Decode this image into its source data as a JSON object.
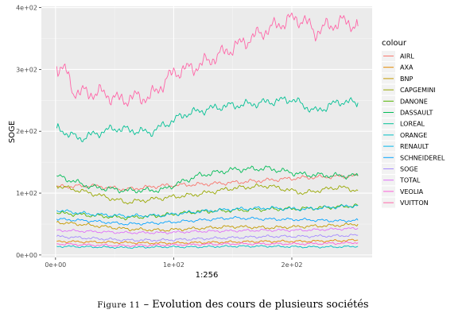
{
  "chart_data": {
    "type": "line",
    "xlabel": "1:256",
    "ylabel": "SOGE",
    "xlim": [
      -12,
      268
    ],
    "ylim": [
      -4,
      402
    ],
    "x_ticks": [
      0,
      100,
      200
    ],
    "x_tick_labels": [
      "0e+00",
      "1e+02",
      "2e+02"
    ],
    "y_ticks": [
      0,
      100,
      200,
      300,
      400
    ],
    "y_tick_labels": [
      "0e+00",
      "1e+02",
      "2e+02",
      "3e+02",
      "4e+02"
    ],
    "grid": true,
    "legend_title": "colour",
    "legend_position": "right",
    "series": [
      {
        "name": "AIRL",
        "color": "#F8766D",
        "x": [
          1,
          30,
          60,
          90,
          120,
          150,
          180,
          210,
          240,
          256
        ],
        "values": [
          110,
          112,
          106,
          112,
          114,
          117,
          121,
          125,
          127,
          128
        ]
      },
      {
        "name": "AXA",
        "color": "#E38900",
        "x": [
          1,
          30,
          60,
          90,
          120,
          150,
          180,
          210,
          240,
          256
        ],
        "values": [
          22,
          21,
          20,
          19,
          20,
          21,
          22,
          22,
          23,
          24
        ]
      },
      {
        "name": "BNP",
        "color": "#C49A00",
        "x": [
          1,
          30,
          60,
          90,
          120,
          150,
          180,
          210,
          240,
          256
        ],
        "values": [
          53,
          48,
          42,
          40,
          43,
          46,
          44,
          46,
          48,
          50
        ]
      },
      {
        "name": "CAPGEMINI",
        "color": "#99A800",
        "x": [
          1,
          30,
          60,
          90,
          120,
          150,
          180,
          210,
          240,
          256
        ],
        "values": [
          112,
          100,
          85,
          92,
          98,
          108,
          112,
          100,
          110,
          104
        ]
      },
      {
        "name": "DANONE",
        "color": "#53B400",
        "x": [
          1,
          30,
          60,
          90,
          120,
          150,
          180,
          210,
          240,
          256
        ],
        "values": [
          68,
          64,
          60,
          64,
          70,
          72,
          74,
          75,
          78,
          80
        ]
      },
      {
        "name": "DASSAULT",
        "color": "#00BC56",
        "x": [
          1,
          30,
          60,
          90,
          120,
          150,
          180,
          210,
          240,
          256
        ],
        "values": [
          128,
          110,
          104,
          105,
          128,
          138,
          140,
          130,
          128,
          128
        ]
      },
      {
        "name": "LOREAL",
        "color": "#00C094",
        "x": [
          1,
          20,
          50,
          80,
          110,
          140,
          170,
          200,
          220,
          240,
          256
        ],
        "values": [
          205,
          188,
          205,
          198,
          228,
          240,
          245,
          252,
          232,
          248,
          246
        ]
      },
      {
        "name": "ORANGE",
        "color": "#00BFC4",
        "x": [
          1,
          30,
          60,
          90,
          120,
          150,
          180,
          210,
          240,
          256
        ],
        "values": [
          14,
          13,
          12,
          13,
          13,
          14,
          14,
          13,
          13,
          14
        ]
      },
      {
        "name": "RENAULT",
        "color": "#00B6EB",
        "x": [
          1,
          30,
          60,
          90,
          120,
          150,
          180,
          210,
          240,
          256
        ],
        "values": [
          72,
          66,
          63,
          64,
          70,
          74,
          76,
          74,
          78,
          80
        ]
      },
      {
        "name": "SCHNEIDEREL",
        "color": "#06A4FF",
        "x": [
          1,
          30,
          60,
          90,
          120,
          150,
          180,
          210,
          240,
          256
        ],
        "values": [
          58,
          55,
          50,
          52,
          56,
          60,
          58,
          57,
          55,
          56
        ]
      },
      {
        "name": "SOGE",
        "color": "#A58AFF",
        "x": [
          1,
          30,
          60,
          90,
          120,
          150,
          180,
          210,
          240,
          256
        ],
        "values": [
          30,
          27,
          24,
          24,
          26,
          28,
          30,
          30,
          31,
          32
        ]
      },
      {
        "name": "TOTAL",
        "color": "#DF70F8",
        "x": [
          1,
          30,
          60,
          90,
          120,
          150,
          180,
          210,
          240,
          256
        ],
        "values": [
          40,
          38,
          36,
          36,
          38,
          39,
          40,
          40,
          42,
          43
        ]
      },
      {
        "name": "VEOLIA",
        "color": "#FB61D7",
        "x": [
          1,
          30,
          60,
          90,
          120,
          150,
          180,
          210,
          240,
          256
        ],
        "values": [
          18,
          16,
          15,
          16,
          17,
          18,
          18,
          18,
          19,
          20
        ]
      },
      {
        "name": "VUITTON",
        "color": "#FF66A8",
        "x": [
          1,
          8,
          15,
          25,
          40,
          55,
          65,
          80,
          100,
          120,
          140,
          160,
          180,
          200,
          210,
          220,
          230,
          245,
          256
        ],
        "values": [
          305,
          300,
          265,
          262,
          262,
          250,
          255,
          255,
          295,
          305,
          325,
          345,
          365,
          382,
          380,
          360,
          370,
          378,
          370
        ]
      }
    ]
  },
  "caption": {
    "label": "Figure 11",
    "separator": "–",
    "text": "Evolution des cours de plusieurs sociétés"
  }
}
